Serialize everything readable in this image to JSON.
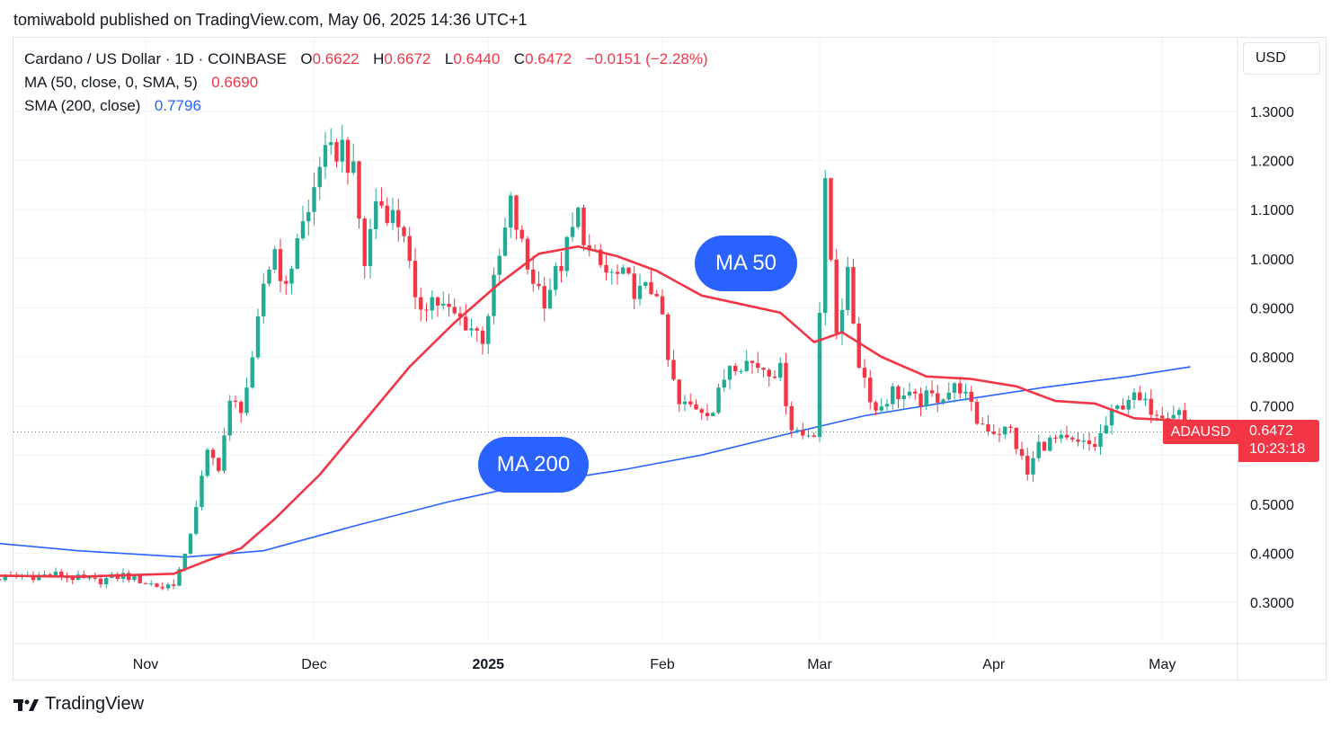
{
  "header": {
    "published": "tomiwabold published on TradingView.com, May 06, 2025 14:36 UTC+1"
  },
  "legend": {
    "symbol": "Cardano / US Dollar · 1D · COINBASE",
    "o_label": "O",
    "o_value": "0.6622",
    "h_label": "H",
    "h_value": "0.6672",
    "l_label": "L",
    "l_value": "0.6440",
    "c_label": "C",
    "c_value": "0.6472",
    "change": "−0.0151 (−2.28%)",
    "ma50_label": "MA (50, close, 0, SMA, 5)",
    "ma50_value": "0.6690",
    "sma200_label": "SMA (200, close)",
    "sma200_value": "0.7796"
  },
  "currency": "USD",
  "annotations": {
    "ma50": "MA 50",
    "ma200": "MA 200"
  },
  "price_tag": {
    "symbol": "ADAUSD",
    "price": "0.6472",
    "countdown": "10:23:18"
  },
  "brand": {
    "name": "TradingView"
  },
  "colors": {
    "up": "#22ab94",
    "down": "#f23645",
    "ma50": "#f23645",
    "ma200": "#2962ff",
    "accent": "#2962ff"
  },
  "chart_data": {
    "type": "candlestick",
    "symbol": "ADAUSD",
    "timeframe": "1D",
    "y_ticks": [
      "1.3000",
      "1.2000",
      "1.1000",
      "1.0000",
      "0.9000",
      "0.8000",
      "0.7000",
      "0.5000",
      "0.4000",
      "0.3000"
    ],
    "ylim": [
      0.22,
      1.38
    ],
    "x_ticks": [
      {
        "label": "Nov",
        "date": "2024-11-01",
        "bold": false
      },
      {
        "label": "Dec",
        "date": "2024-12-01",
        "bold": false
      },
      {
        "label": "2025",
        "date": "2025-01-01",
        "bold": true
      },
      {
        "label": "Feb",
        "date": "2025-02-01",
        "bold": false
      },
      {
        "label": "Mar",
        "date": "2025-03-01",
        "bold": false
      },
      {
        "label": "Apr",
        "date": "2025-04-01",
        "bold": false
      },
      {
        "label": "May",
        "date": "2025-05-01",
        "bold": false
      }
    ],
    "last_close": 0.6472,
    "closes": [
      {
        "date": "2024-10-02",
        "close": 0.345
      },
      {
        "date": "2024-10-09",
        "close": 0.352
      },
      {
        "date": "2024-10-16",
        "close": 0.356
      },
      {
        "date": "2024-10-23",
        "close": 0.342
      },
      {
        "date": "2024-10-28",
        "close": 0.355
      },
      {
        "date": "2024-11-04",
        "close": 0.33
      },
      {
        "date": "2024-11-06",
        "close": 0.34
      },
      {
        "date": "2024-11-08",
        "close": 0.39
      },
      {
        "date": "2024-11-10",
        "close": 0.5
      },
      {
        "date": "2024-11-12",
        "close": 0.6
      },
      {
        "date": "2024-11-14",
        "close": 0.58
      },
      {
        "date": "2024-11-16",
        "close": 0.7
      },
      {
        "date": "2024-11-18",
        "close": 0.7
      },
      {
        "date": "2024-11-20",
        "close": 0.78
      },
      {
        "date": "2024-11-22",
        "close": 0.95
      },
      {
        "date": "2024-11-24",
        "close": 1.02
      },
      {
        "date": "2024-11-26",
        "close": 0.93
      },
      {
        "date": "2024-11-28",
        "close": 1.05
      },
      {
        "date": "2024-11-30",
        "close": 1.09
      },
      {
        "date": "2024-12-02",
        "close": 1.2
      },
      {
        "date": "2024-12-04",
        "close": 1.21
      },
      {
        "date": "2024-12-06",
        "close": 1.23
      },
      {
        "date": "2024-12-08",
        "close": 1.17
      },
      {
        "date": "2024-12-10",
        "close": 0.99
      },
      {
        "date": "2024-12-12",
        "close": 1.12
      },
      {
        "date": "2024-12-14",
        "close": 1.1
      },
      {
        "date": "2024-12-17",
        "close": 1.06
      },
      {
        "date": "2024-12-19",
        "close": 0.9
      },
      {
        "date": "2024-12-22",
        "close": 0.92
      },
      {
        "date": "2024-12-25",
        "close": 0.89
      },
      {
        "date": "2024-12-28",
        "close": 0.87
      },
      {
        "date": "2024-12-31",
        "close": 0.84
      },
      {
        "date": "2025-01-03",
        "close": 1.0
      },
      {
        "date": "2025-01-05",
        "close": 1.11
      },
      {
        "date": "2025-01-08",
        "close": 0.98
      },
      {
        "date": "2025-01-11",
        "close": 0.92
      },
      {
        "date": "2025-01-14",
        "close": 0.99
      },
      {
        "date": "2025-01-17",
        "close": 1.09
      },
      {
        "date": "2025-01-19",
        "close": 1.01
      },
      {
        "date": "2025-01-22",
        "close": 0.97
      },
      {
        "date": "2025-01-25",
        "close": 0.96
      },
      {
        "date": "2025-01-28",
        "close": 0.93
      },
      {
        "date": "2025-01-31",
        "close": 0.94
      },
      {
        "date": "2025-02-02",
        "close": 0.79
      },
      {
        "date": "2025-02-04",
        "close": 0.7
      },
      {
        "date": "2025-02-07",
        "close": 0.7
      },
      {
        "date": "2025-02-10",
        "close": 0.69
      },
      {
        "date": "2025-02-13",
        "close": 0.79
      },
      {
        "date": "2025-02-16",
        "close": 0.79
      },
      {
        "date": "2025-02-19",
        "close": 0.78
      },
      {
        "date": "2025-02-22",
        "close": 0.77
      },
      {
        "date": "2025-02-24",
        "close": 0.66
      },
      {
        "date": "2025-02-26",
        "close": 0.64
      },
      {
        "date": "2025-02-28",
        "close": 0.65
      },
      {
        "date": "2025-03-02",
        "close": 1.14
      },
      {
        "date": "2025-03-04",
        "close": 0.86
      },
      {
        "date": "2025-03-06",
        "close": 0.96
      },
      {
        "date": "2025-03-08",
        "close": 0.79
      },
      {
        "date": "2025-03-11",
        "close": 0.69
      },
      {
        "date": "2025-03-14",
        "close": 0.73
      },
      {
        "date": "2025-03-18",
        "close": 0.71
      },
      {
        "date": "2025-03-22",
        "close": 0.72
      },
      {
        "date": "2025-03-26",
        "close": 0.74
      },
      {
        "date": "2025-03-29",
        "close": 0.67
      },
      {
        "date": "2025-04-01",
        "close": 0.65
      },
      {
        "date": "2025-04-04",
        "close": 0.65
      },
      {
        "date": "2025-04-07",
        "close": 0.56
      },
      {
        "date": "2025-04-09",
        "close": 0.62
      },
      {
        "date": "2025-04-12",
        "close": 0.63
      },
      {
        "date": "2025-04-16",
        "close": 0.62
      },
      {
        "date": "2025-04-19",
        "close": 0.62
      },
      {
        "date": "2025-04-22",
        "close": 0.68
      },
      {
        "date": "2025-04-25",
        "close": 0.72
      },
      {
        "date": "2025-04-28",
        "close": 0.7
      },
      {
        "date": "2025-05-01",
        "close": 0.69
      },
      {
        "date": "2025-05-04",
        "close": 0.69
      },
      {
        "date": "2025-05-06",
        "close": 0.647
      }
    ],
    "ma50": [
      {
        "date": "2024-10-01",
        "value": 0.355
      },
      {
        "date": "2024-10-20",
        "value": 0.352
      },
      {
        "date": "2024-11-06",
        "value": 0.358
      },
      {
        "date": "2024-11-12",
        "value": 0.385
      },
      {
        "date": "2024-11-18",
        "value": 0.41
      },
      {
        "date": "2024-11-24",
        "value": 0.47
      },
      {
        "date": "2024-12-02",
        "value": 0.56
      },
      {
        "date": "2024-12-10",
        "value": 0.67
      },
      {
        "date": "2024-12-18",
        "value": 0.78
      },
      {
        "date": "2024-12-26",
        "value": 0.87
      },
      {
        "date": "2025-01-03",
        "value": 0.95
      },
      {
        "date": "2025-01-10",
        "value": 1.01
      },
      {
        "date": "2025-01-17",
        "value": 1.025
      },
      {
        "date": "2025-01-24",
        "value": 1.005
      },
      {
        "date": "2025-01-31",
        "value": 0.975
      },
      {
        "date": "2025-02-08",
        "value": 0.925
      },
      {
        "date": "2025-02-16",
        "value": 0.905
      },
      {
        "date": "2025-02-22",
        "value": 0.89
      },
      {
        "date": "2025-02-28",
        "value": 0.83
      },
      {
        "date": "2025-03-05",
        "value": 0.85
      },
      {
        "date": "2025-03-12",
        "value": 0.8
      },
      {
        "date": "2025-03-20",
        "value": 0.76
      },
      {
        "date": "2025-03-28",
        "value": 0.755
      },
      {
        "date": "2025-04-05",
        "value": 0.74
      },
      {
        "date": "2025-04-12",
        "value": 0.71
      },
      {
        "date": "2025-04-19",
        "value": 0.705
      },
      {
        "date": "2025-04-26",
        "value": 0.675
      },
      {
        "date": "2025-05-06",
        "value": 0.669
      }
    ],
    "sma200": [
      {
        "date": "2024-10-01",
        "value": 0.425
      },
      {
        "date": "2024-10-20",
        "value": 0.405
      },
      {
        "date": "2024-11-08",
        "value": 0.392
      },
      {
        "date": "2024-11-22",
        "value": 0.405
      },
      {
        "date": "2024-12-08",
        "value": 0.455
      },
      {
        "date": "2024-12-25",
        "value": 0.505
      },
      {
        "date": "2025-01-08",
        "value": 0.54
      },
      {
        "date": "2025-01-25",
        "value": 0.57
      },
      {
        "date": "2025-02-08",
        "value": 0.6
      },
      {
        "date": "2025-02-24",
        "value": 0.645
      },
      {
        "date": "2025-03-09",
        "value": 0.68
      },
      {
        "date": "2025-03-25",
        "value": 0.71
      },
      {
        "date": "2025-04-10",
        "value": 0.738
      },
      {
        "date": "2025-04-25",
        "value": 0.76
      },
      {
        "date": "2025-05-06",
        "value": 0.7796
      }
    ]
  }
}
